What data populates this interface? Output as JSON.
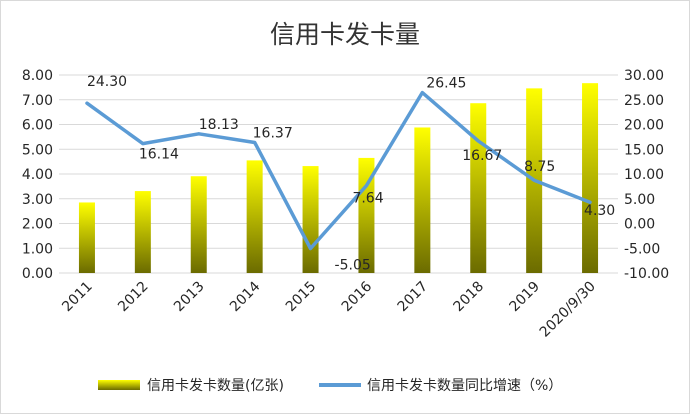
{
  "chart_data": {
    "type": "bar",
    "title": "信用卡发卡量",
    "categories": [
      "2011",
      "2012",
      "2013",
      "2014",
      "2015",
      "2016",
      "2017",
      "2018",
      "2019",
      "2020/9/30"
    ],
    "series": [
      {
        "name": "信用卡发卡数量(亿张)",
        "type": "bar",
        "axis": "left",
        "values": [
          2.85,
          3.31,
          3.91,
          4.55,
          4.32,
          4.65,
          5.88,
          6.86,
          7.46,
          7.67
        ]
      },
      {
        "name": "信用卡发卡数量同比增速（%）",
        "type": "line",
        "axis": "right",
        "values": [
          24.3,
          16.14,
          18.13,
          16.37,
          -5.05,
          7.64,
          26.45,
          16.67,
          8.75,
          4.3
        ],
        "data_labels": [
          "24.30",
          "16.14",
          "18.13",
          "16.37",
          "-5.05",
          "7.64",
          "26.45",
          "16.67",
          "8.75",
          "4.30"
        ]
      }
    ],
    "y_left": {
      "ylim": [
        0,
        8
      ],
      "ticks": [
        "0.00",
        "1.00",
        "2.00",
        "3.00",
        "4.00",
        "5.00",
        "6.00",
        "7.00",
        "8.00"
      ]
    },
    "y_right": {
      "ylim": [
        -10,
        30
      ],
      "ticks": [
        "-10.00",
        "-5.00",
        "0.00",
        "5.00",
        "10.00",
        "15.00",
        "20.00",
        "25.00",
        "30.00"
      ]
    },
    "grid": true,
    "legend_position": "bottom",
    "colors": {
      "bar_top": "#ffff00",
      "bar_bottom": "#6b6b00",
      "line": "#5b9bd5",
      "grid": "#d9d9d9",
      "text": "#262626"
    }
  }
}
